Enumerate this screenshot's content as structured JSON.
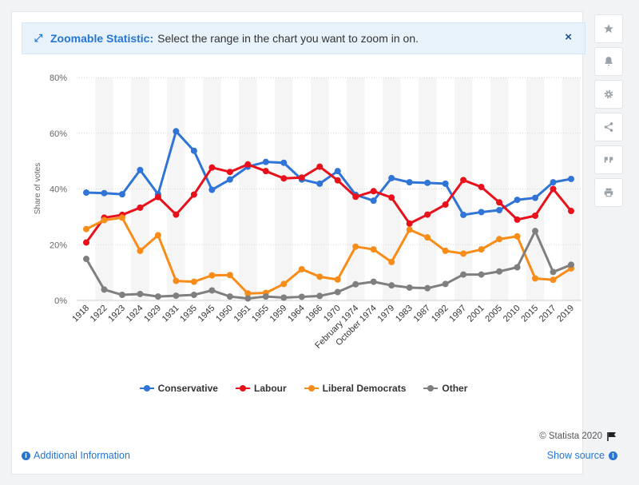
{
  "banner": {
    "title": "Zoomable Statistic:",
    "text": "Select the range in the chart you want to zoom in on.",
    "close_label": "×"
  },
  "sidebar": {
    "icons": [
      "star-icon",
      "bell-icon",
      "gear-icon",
      "share-icon",
      "quote-icon",
      "print-icon"
    ]
  },
  "footer": {
    "additional_info": "Additional Information",
    "show_source": "Show source",
    "copyright": "© Statista 2020"
  },
  "colors": {
    "conservative": "#2f74d6",
    "labour": "#e8101a",
    "libdem": "#f78c18",
    "other": "#7f7f7f"
  },
  "chart_data": {
    "type": "line",
    "title": "",
    "xlabel": "",
    "ylabel": "Share of votes",
    "ylim": [
      0,
      80
    ],
    "yticks": [
      "0%",
      "20%",
      "40%",
      "60%",
      "80%"
    ],
    "grid": true,
    "legend_position": "bottom",
    "categories": [
      "1918",
      "1922",
      "1923",
      "1924",
      "1929",
      "1931",
      "1935",
      "1945",
      "1950",
      "1951",
      "1955",
      "1959",
      "1964",
      "1966",
      "1970",
      "February 1974",
      "October 1974",
      "1979",
      "1983",
      "1987",
      "1992",
      "1997",
      "2001",
      "2005",
      "2010",
      "2015",
      "2017",
      "2019"
    ],
    "series": [
      {
        "name": "Conservative",
        "color": "#2f74d6",
        "values": [
          38.7,
          38.5,
          38.1,
          46.8,
          38.1,
          60.7,
          53.7,
          39.7,
          43.4,
          48.0,
          49.7,
          49.4,
          43.4,
          41.9,
          46.4,
          37.9,
          35.8,
          43.9,
          42.4,
          42.2,
          41.9,
          30.7,
          31.7,
          32.4,
          36.1,
          36.8,
          42.4,
          43.6
        ]
      },
      {
        "name": "Labour",
        "color": "#e8101a",
        "values": [
          20.8,
          29.7,
          30.7,
          33.3,
          37.1,
          30.8,
          38.0,
          47.7,
          46.1,
          48.8,
          46.4,
          43.8,
          44.1,
          48.0,
          43.1,
          37.2,
          39.2,
          36.9,
          27.6,
          30.8,
          34.4,
          43.2,
          40.7,
          35.2,
          29.0,
          30.4,
          40.0,
          32.1
        ]
      },
      {
        "name": "Liberal Democrats",
        "color": "#f78c18",
        "values": [
          25.6,
          28.8,
          29.7,
          17.8,
          23.4,
          7.0,
          6.7,
          9.0,
          9.1,
          2.5,
          2.7,
          5.9,
          11.2,
          8.5,
          7.5,
          19.3,
          18.3,
          13.8,
          25.4,
          22.6,
          17.8,
          16.8,
          18.3,
          22.0,
          23.0,
          7.9,
          7.4,
          11.5
        ]
      },
      {
        "name": "Other",
        "color": "#7f7f7f",
        "values": [
          14.9,
          3.9,
          2.0,
          2.3,
          1.4,
          1.7,
          2.0,
          3.6,
          1.4,
          0.7,
          1.4,
          1.0,
          1.3,
          1.6,
          3.0,
          5.8,
          6.7,
          5.4,
          4.6,
          4.4,
          5.9,
          9.3,
          9.3,
          10.4,
          11.9,
          24.9,
          10.2,
          12.8
        ]
      }
    ]
  }
}
